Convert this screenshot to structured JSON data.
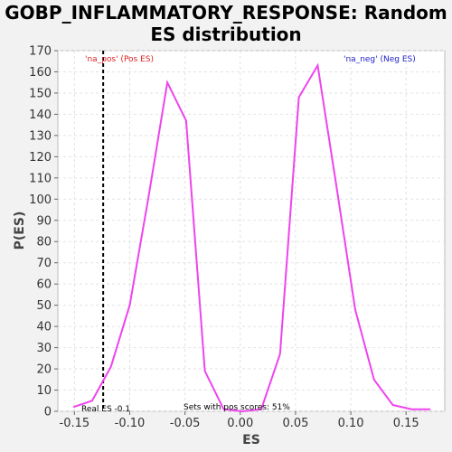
{
  "title_line1": "GOBP_INFLAMMATORY_RESPONSE: Random",
  "title_line2": "ES distribution",
  "chart_data": {
    "type": "line",
    "xlabel": "ES",
    "ylabel": "P(ES)",
    "xlim": [
      -0.165,
      0.185
    ],
    "ylim": [
      0,
      170
    ],
    "xticks": [
      -0.15,
      -0.1,
      -0.05,
      0.0,
      0.05,
      0.1,
      0.15
    ],
    "xtick_labels": [
      "-0.15",
      "-0.10",
      "-0.05",
      "0.00",
      "0.05",
      "0.10",
      "0.15"
    ],
    "yticks": [
      0,
      10,
      20,
      30,
      40,
      50,
      60,
      70,
      80,
      90,
      100,
      110,
      120,
      130,
      140,
      150,
      160,
      170
    ],
    "grid": true,
    "line_color": "#ee44ee",
    "series": [
      {
        "x": [
          -0.151,
          -0.134,
          -0.117,
          -0.1,
          -0.083,
          -0.066,
          -0.049,
          -0.032,
          -0.015,
          0.002,
          0.019,
          0.036,
          0.053,
          0.07,
          0.087,
          0.104,
          0.121,
          0.138,
          0.155,
          0.172
        ],
        "values": [
          2,
          5,
          21,
          50,
          101,
          155,
          137,
          19,
          1,
          0,
          1,
          27,
          148,
          163,
          106,
          48,
          15,
          3,
          1,
          1
        ]
      }
    ],
    "real_es_line": {
      "x": -0.124,
      "color": "#000000"
    },
    "annotations": {
      "pos_label": "'na_pos' (Pos ES)",
      "pos_color": "#dd2222",
      "neg_label": "'na_neg' (Neg ES)",
      "neg_color": "#2222cc",
      "real_es_label": "Real ES -0.1",
      "pos_scores_label": "Sets with pos scores: 51%"
    }
  }
}
